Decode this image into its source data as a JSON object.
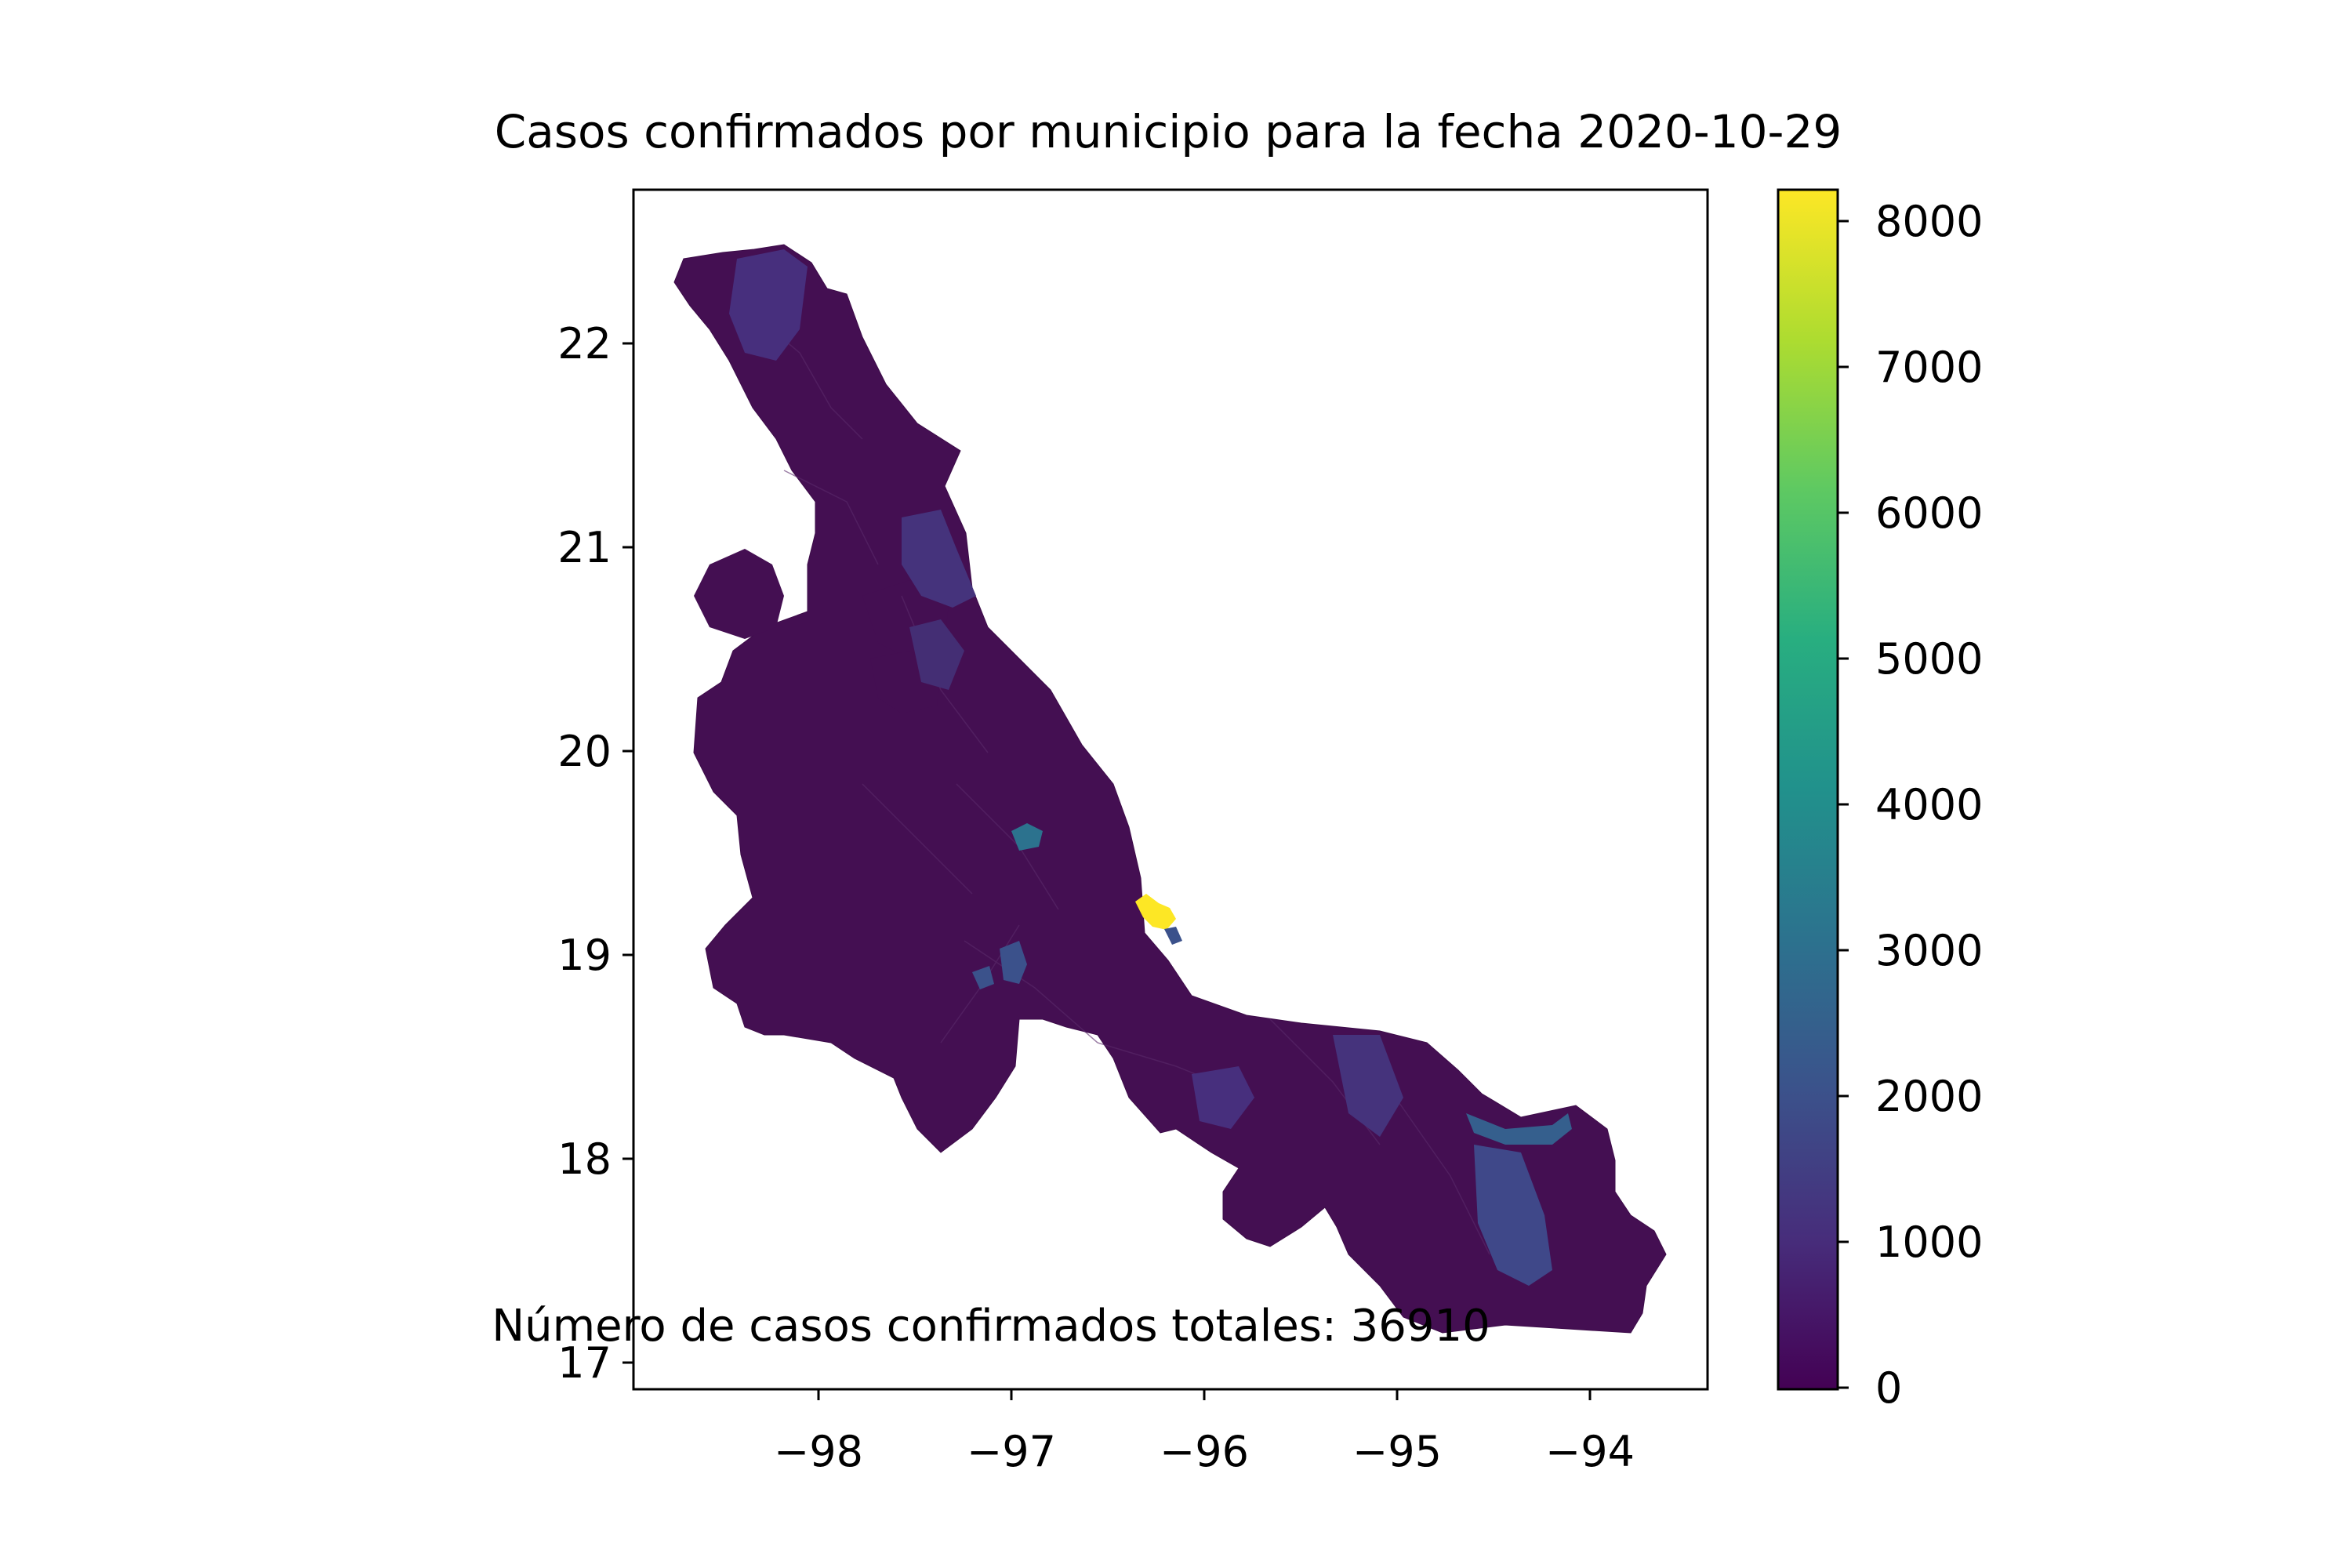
{
  "title": "Casos confirmados por municipio para la fecha 2020-10-29",
  "annotation": "Número de casos confirmados totales: 36910",
  "map": {
    "x_ticks": [
      "−98",
      "−97",
      "−96",
      "−95",
      "−94"
    ],
    "y_ticks": [
      "17",
      "18",
      "19",
      "20",
      "21",
      "22"
    ],
    "x_range": [
      -98.94,
      -93.38
    ],
    "y_range": [
      16.77,
      22.74
    ],
    "region_fill": "#440f52",
    "highlighted_municipalities_colors": [
      "#3b518b",
      "#2c728e",
      "#fde725"
    ]
  },
  "colorbar": {
    "ticks": [
      "0",
      "1000",
      "2000",
      "3000",
      "4000",
      "5000",
      "6000",
      "7000",
      "8000"
    ],
    "min": 0,
    "max": 8200,
    "colormap": "viridis"
  }
}
